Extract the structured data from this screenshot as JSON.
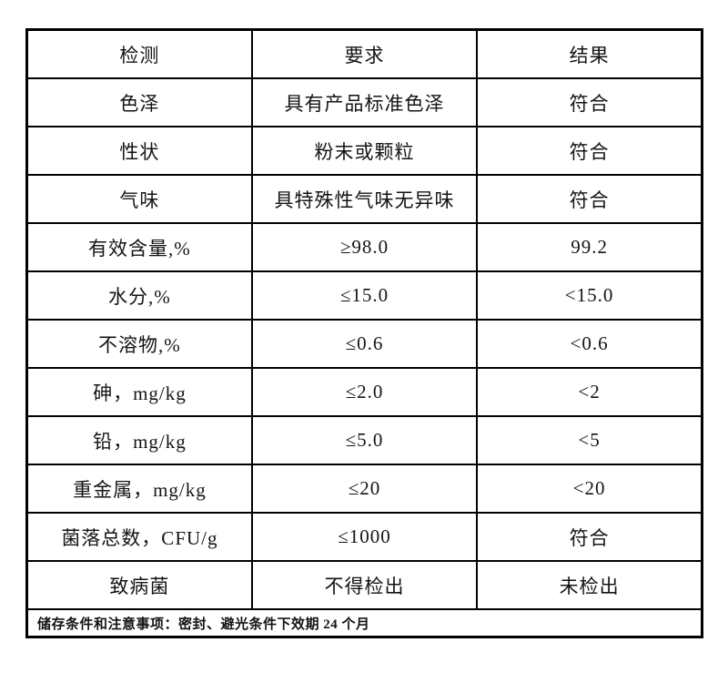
{
  "page": {
    "background": "#ffffff",
    "border_color": "#000000",
    "text_color": "#141414"
  },
  "table": {
    "headers": [
      "检测",
      "要求",
      "结果"
    ],
    "rows": [
      {
        "test": "色泽",
        "requirement": "具有产品标准色泽",
        "result": "符合"
      },
      {
        "test": "性状",
        "requirement": "粉末或颗粒",
        "result": "符合"
      },
      {
        "test": "气味",
        "requirement": "具特殊性气味无异味",
        "result": "符合"
      },
      {
        "test": "有效含量,%",
        "requirement": "≥98.0",
        "result": "99.2"
      },
      {
        "test": "水分,%",
        "requirement": "≤15.0",
        "result": "<15.0"
      },
      {
        "test": "不溶物,%",
        "requirement": "≤0.6",
        "result": "<0.6"
      },
      {
        "test": "砷，mg/kg",
        "requirement": "≤2.0",
        "result": "<2"
      },
      {
        "test": "铅，mg/kg",
        "requirement": "≤5.0",
        "result": "<5"
      },
      {
        "test": "重金属，mg/kg",
        "requirement": "≤20",
        "result": "<20"
      },
      {
        "test": "菌落总数，CFU/g",
        "requirement": "≤1000",
        "result": "符合"
      },
      {
        "test": "致病菌",
        "requirement": "不得检出",
        "result": "未检出"
      }
    ],
    "footer": "储存条件和注意事项：密封、避光条件下效期 24 个月"
  }
}
